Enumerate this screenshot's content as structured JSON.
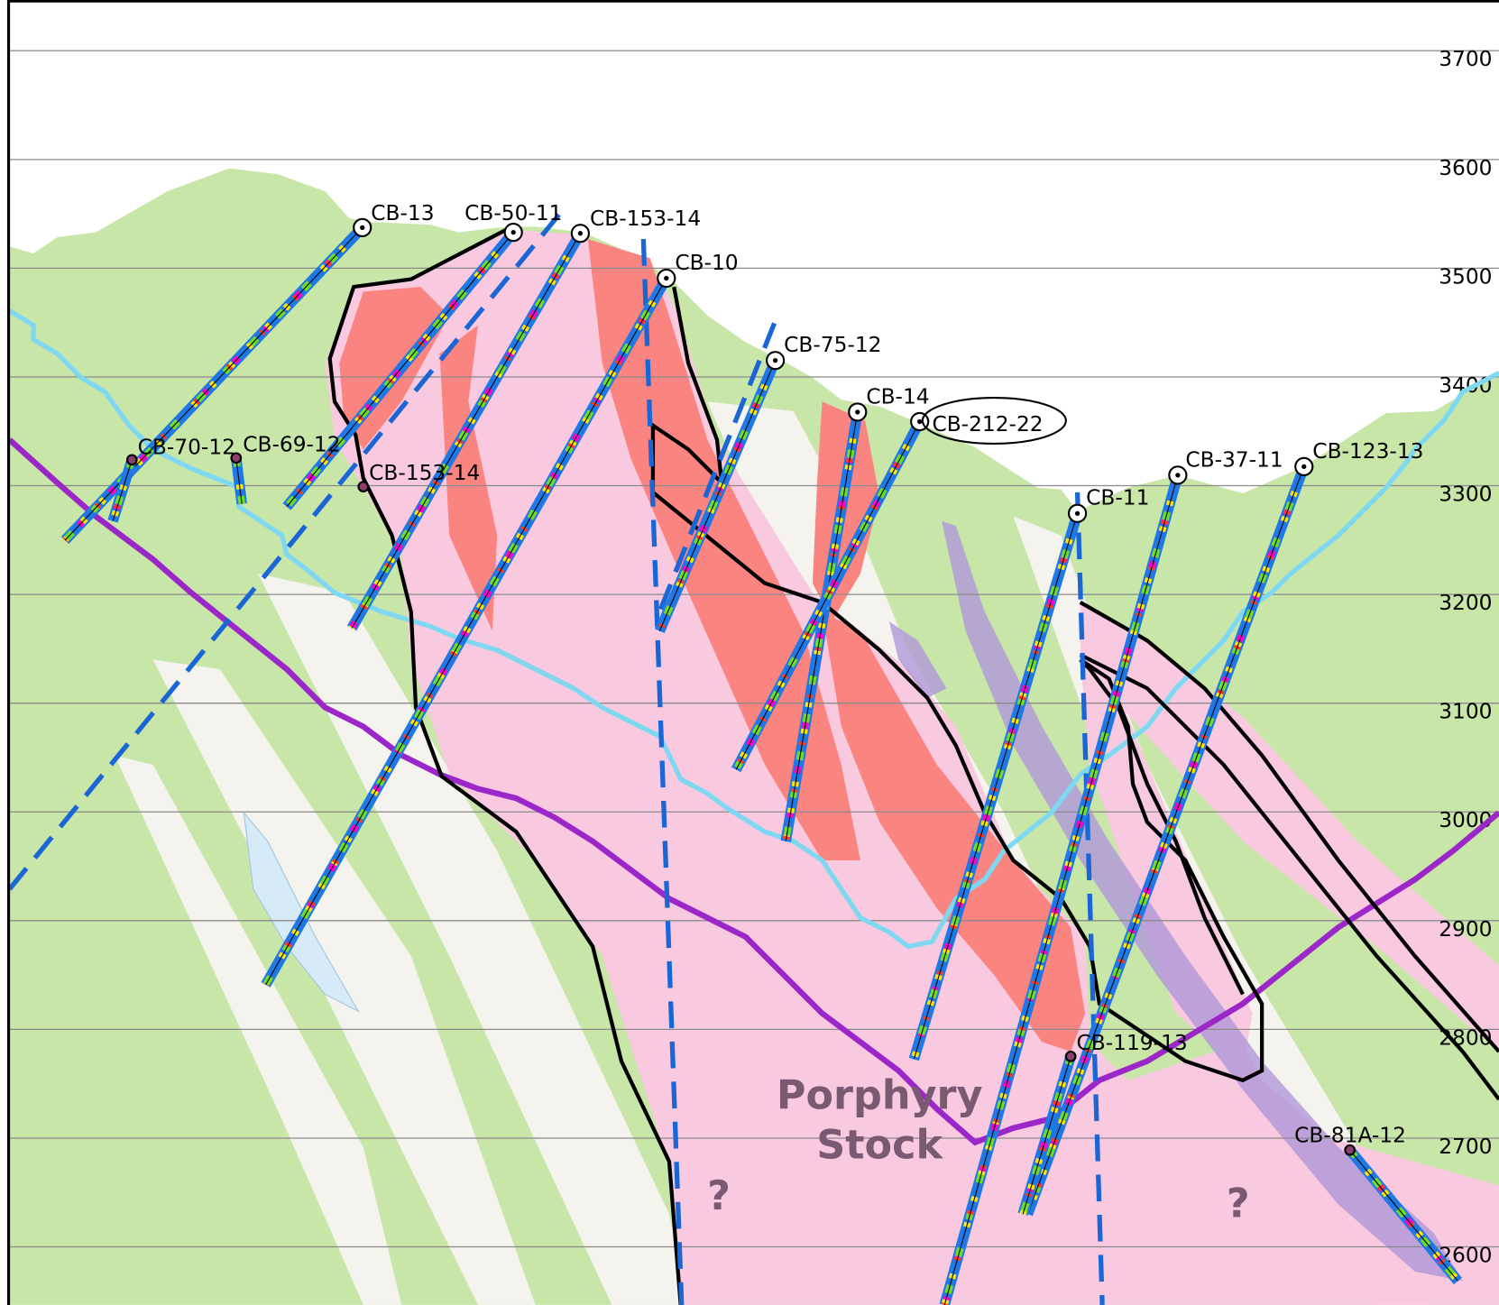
{
  "elevation_axis": {
    "ticks": [
      3700,
      3600,
      3500,
      3400,
      3300,
      3200,
      3100,
      3000,
      2900,
      2800,
      2700,
      2600
    ]
  },
  "drill_holes": [
    {
      "label": "CB-13"
    },
    {
      "label": "CB-50-11"
    },
    {
      "label": "CB-153-14"
    },
    {
      "label": "CB-10"
    },
    {
      "label": "CB-75-12"
    },
    {
      "label": "CB-14"
    },
    {
      "label": "CB-212-22"
    },
    {
      "label": "CB-11"
    },
    {
      "label": "CB-37-11"
    },
    {
      "label": "CB-123-13"
    },
    {
      "label": "CB-70-12"
    },
    {
      "label": "CB-69-12"
    },
    {
      "label": "CB-153-14"
    },
    {
      "label": "CB-119-13"
    },
    {
      "label": "CB-81A-12"
    }
  ],
  "annotations": {
    "porphyry_line1": "Porphyry",
    "porphyry_line2": "Stock",
    "unknown_left": "?",
    "unknown_right": "?"
  }
}
